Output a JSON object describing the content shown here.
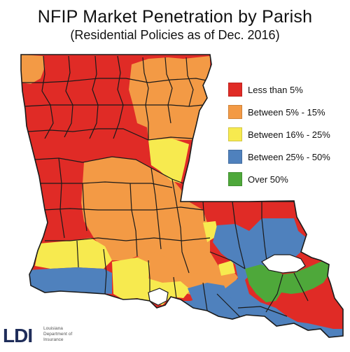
{
  "title": "NFIP Market Penetration by Parish",
  "subtitle": "(Residential Policies as of Dec. 2016)",
  "legend": {
    "items": [
      {
        "label": "Less than 5%",
        "color": "#e02b26"
      },
      {
        "label": "Between 5% - 15%",
        "color": "#f39a45"
      },
      {
        "label": "Between 16% - 25%",
        "color": "#f7ea4f"
      },
      {
        "label": "Between 25% - 50%",
        "color": "#4f81bd"
      },
      {
        "label": "Over 50%",
        "color": "#4ea83a"
      }
    ]
  },
  "logo": {
    "mark": "LDI",
    "line1": "Louisiana",
    "line2": "Department of",
    "line3": "Insurance"
  },
  "colors": {
    "red": "#e02b26",
    "orange": "#f39a45",
    "yellow": "#f7ea4f",
    "blue": "#4f81bd",
    "green": "#4ea83a",
    "border": "#1a1a1a"
  }
}
